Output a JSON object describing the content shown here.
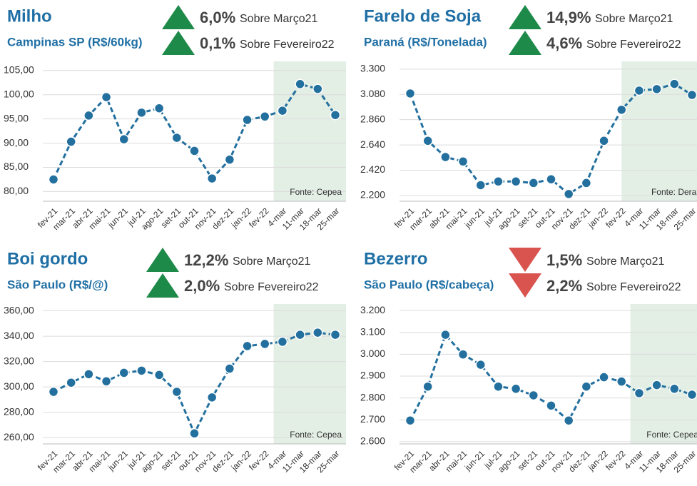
{
  "chart_data": [
    {
      "type": "line",
      "title": "Milho",
      "subtitle": "Campinas SP (R$/60kg)",
      "changes": [
        {
          "value": 6.0,
          "label": "6,0%",
          "direction": "up",
          "reference": "Sobre Março21"
        },
        {
          "value": 0.1,
          "label": "0,1%",
          "direction": "up",
          "reference": "Sobre Fevereiro22"
        }
      ],
      "categories": [
        "fev-21",
        "mar-21",
        "abr-21",
        "mai-21",
        "jun-21",
        "jul-21",
        "ago-21",
        "set-21",
        "out-21",
        "nov-21",
        "dez-21",
        "jan-22",
        "fev-22",
        "4-mar",
        "11-mar",
        "18-mar",
        "25-mar"
      ],
      "series": [
        {
          "color": "#23709f",
          "values": [
            82.5,
            90.3,
            95.7,
            99.5,
            90.8,
            96.3,
            97.2,
            91.1,
            88.4,
            82.7,
            86.6,
            94.8,
            95.5,
            96.7,
            102.2,
            101.2,
            95.8
          ]
        }
      ],
      "ylim": [
        78,
        106
      ],
      "yticks": [
        {
          "value": 80,
          "label": "80,00"
        },
        {
          "value": 85,
          "label": "85,00"
        },
        {
          "value": 90,
          "label": "90,00"
        },
        {
          "value": 95,
          "label": "95,00"
        },
        {
          "value": 100,
          "label": "100,00"
        },
        {
          "value": 105,
          "label": "105,00"
        }
      ],
      "grid": true,
      "shade_from_index": 13,
      "shade_color": "#e3efe5",
      "source": "Fonte: Cepea"
    },
    {
      "type": "line",
      "title": "Farelo de Soja",
      "subtitle": "Paraná (R$/Tonelada)",
      "changes": [
        {
          "value": 14.9,
          "label": "14,9%",
          "direction": "up",
          "reference": "Sobre Março21"
        },
        {
          "value": 4.6,
          "label": "4,6%",
          "direction": "up",
          "reference": "Sobre Fevereiro22"
        }
      ],
      "categories": [
        "fev-21",
        "mar-21",
        "abr-21",
        "mai-21",
        "jun-21",
        "jul-21",
        "ago-21",
        "set-21",
        "out-21",
        "nov-21",
        "dez-21",
        "jan-22",
        "fev-22",
        "4-mar",
        "11-mar",
        "18-mar",
        "25-mar"
      ],
      "series": [
        {
          "color": "#23709f",
          "values": [
            3088,
            2676,
            2535,
            2496,
            2290,
            2322,
            2322,
            2309,
            2341,
            2213,
            2309,
            2676,
            2946,
            3113,
            3126,
            3171,
            3075
          ]
        }
      ],
      "ylim": [
        2150,
        3330
      ],
      "yticks": [
        {
          "value": 2200,
          "label": "2.200"
        },
        {
          "value": 2420,
          "label": "2.420"
        },
        {
          "value": 2640,
          "label": "2.640"
        },
        {
          "value": 2860,
          "label": "2.860"
        },
        {
          "value": 3080,
          "label": "3.080"
        },
        {
          "value": 3300,
          "label": "3.300"
        }
      ],
      "grid": true,
      "shade_from_index": 12.5,
      "shade_color": "#e3efe5",
      "source": "Fonte: Deral"
    },
    {
      "type": "line",
      "title": "Boi gordo",
      "subtitle": "São Paulo (R$/@)",
      "changes": [
        {
          "value": 12.2,
          "label": "12,2%",
          "direction": "up",
          "reference": "Sobre Março21"
        },
        {
          "value": 2.0,
          "label": "2,0%",
          "direction": "up",
          "reference": "Sobre Fevereiro22"
        }
      ],
      "categories": [
        "fev-21",
        "mar-21",
        "abr-21",
        "mai-21",
        "jun-21",
        "jul-21",
        "ago-21",
        "set-21",
        "out-21",
        "nov-21",
        "dez-21",
        "jan-22",
        "fev-22",
        "4-mar",
        "11-mar",
        "18-mar",
        "25-mar"
      ],
      "series": [
        {
          "color": "#23709f",
          "values": [
            296.1,
            303.3,
            310.0,
            304.4,
            311.1,
            312.8,
            309.4,
            296.1,
            263.3,
            291.7,
            314.4,
            332.2,
            333.9,
            335.6,
            341.1,
            342.8,
            341.1
          ]
        }
      ],
      "ylim": [
        255,
        362
      ],
      "yticks": [
        {
          "value": 260,
          "label": "260,00"
        },
        {
          "value": 280,
          "label": "280,00"
        },
        {
          "value": 300,
          "label": "300,00"
        },
        {
          "value": 320,
          "label": "320,00"
        },
        {
          "value": 340,
          "label": "340,00"
        },
        {
          "value": 360,
          "label": "360,00"
        }
      ],
      "grid": true,
      "shade_from_index": 13,
      "shade_color": "#e3efe5",
      "source": "Fonte: Cepea"
    },
    {
      "type": "line",
      "title": "Bezerro",
      "subtitle": "São Paulo (R$/cabeça)",
      "changes": [
        {
          "value": 1.5,
          "label": "1,5%",
          "direction": "down",
          "reference": "Sobre Março21"
        },
        {
          "value": 2.2,
          "label": "2,2%",
          "direction": "down",
          "reference": "Sobre Fevereiro22"
        }
      ],
      "categories": [
        "fev-21",
        "mar-21",
        "abr-21",
        "mai-21",
        "jun-21",
        "jul-21",
        "ago-21",
        "set-21",
        "out-21",
        "nov-21",
        "dez-21",
        "jan-22",
        "fev-22",
        "4-mar",
        "11-mar",
        "18-mar",
        "25-mar"
      ],
      "series": [
        {
          "color": "#23709f",
          "values": [
            2697,
            2852,
            3089,
            2999,
            2952,
            2852,
            2842,
            2812,
            2765,
            2697,
            2852,
            2895,
            2875,
            2822,
            2859,
            2842,
            2815
          ]
        }
      ],
      "ylim": [
        2590,
        3210
      ],
      "yticks": [
        {
          "value": 2600,
          "label": "2.600"
        },
        {
          "value": 2700,
          "label": "2.700"
        },
        {
          "value": 2800,
          "label": "2.800"
        },
        {
          "value": 2900,
          "label": "2.900"
        },
        {
          "value": 3000,
          "label": "3.000"
        },
        {
          "value": 3100,
          "label": "3.100"
        },
        {
          "value": 3200,
          "label": "3.200"
        }
      ],
      "grid": true,
      "shade_from_index": 13,
      "shade_color": "#e3efe5",
      "source": "Fonte: Cepea"
    }
  ],
  "colors": {
    "up": "#1e8a4a",
    "down": "#d9534f"
  }
}
